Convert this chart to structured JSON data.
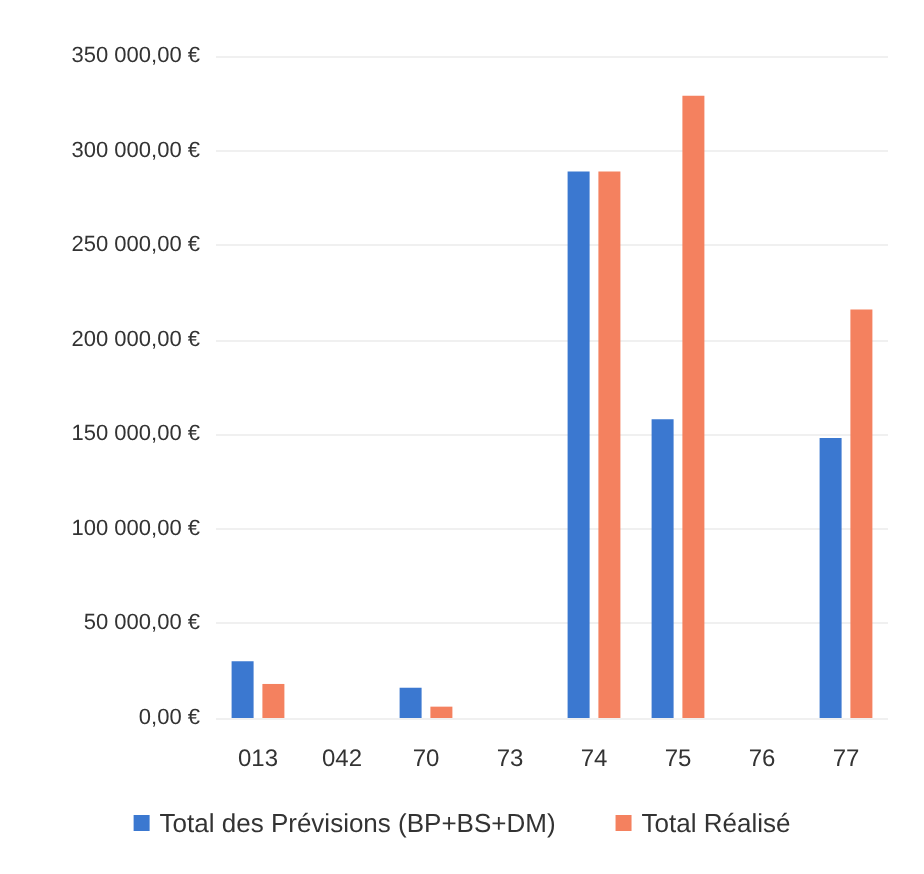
{
  "chart_data": {
    "type": "bar",
    "categories": [
      "013",
      "042",
      "70",
      "73",
      "74",
      "75",
      "76",
      "77"
    ],
    "series": [
      {
        "name": "Total des Prévisions (BP+BS+DM)",
        "color": "#3b78d0",
        "values": [
          30000,
          null,
          16000,
          null,
          289000,
          158000,
          null,
          148000
        ]
      },
      {
        "name": "Total Réalisé",
        "color": "#f4815f",
        "values": [
          18000,
          null,
          6000,
          null,
          289000,
          329000,
          null,
          216000
        ]
      }
    ],
    "ylim": [
      0,
      350000
    ],
    "yticks": [
      {
        "value": 0,
        "label": "0,00 €"
      },
      {
        "value": 50000,
        "label": "50 000,00 €"
      },
      {
        "value": 100000,
        "label": "100 000,00 €"
      },
      {
        "value": 150000,
        "label": "150 000,00 €"
      },
      {
        "value": 200000,
        "label": "200 000,00 €"
      },
      {
        "value": 250000,
        "label": "250 000,00 €"
      },
      {
        "value": 300000,
        "label": "300 000,00 €"
      },
      {
        "value": 350000,
        "label": "350 000,00 €"
      }
    ],
    "grid": "y",
    "legend": "bottom"
  }
}
